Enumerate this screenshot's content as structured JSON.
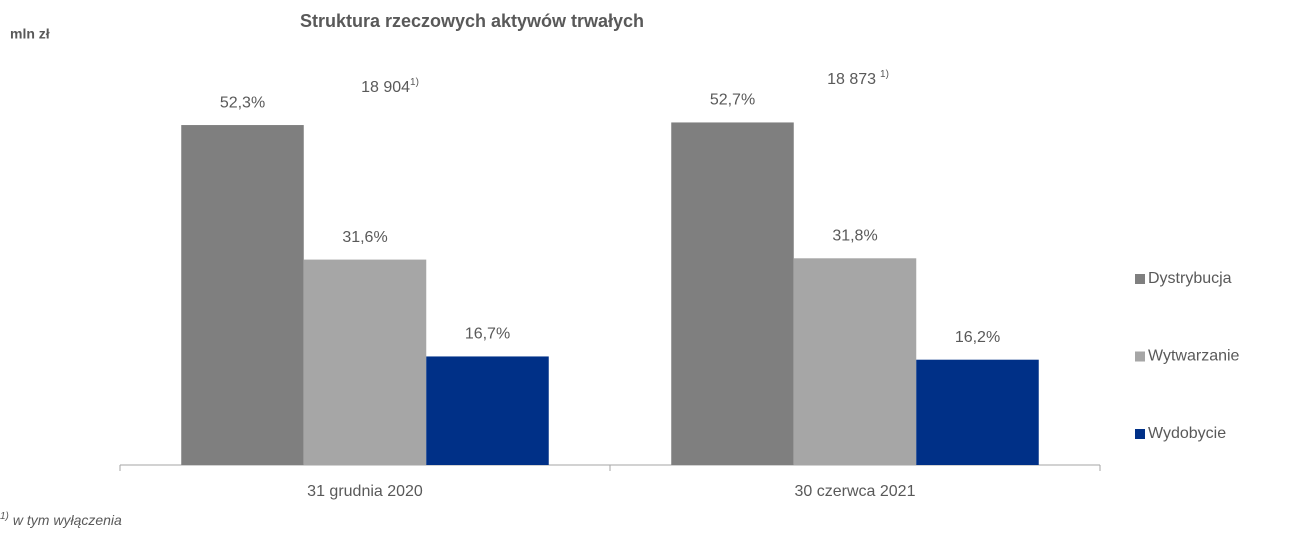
{
  "chart_data": {
    "type": "bar",
    "title": "Struktura rzeczowych aktywów trwałych",
    "unit_label": "mln zł",
    "categories": [
      "31 grudnia 2020",
      "30 czerwca 2021"
    ],
    "series": [
      {
        "name": "Dystrybucja",
        "color": "#7f7f7f",
        "values": [
          52.3,
          52.7
        ],
        "value_labels": [
          "52,3%",
          "52,7%"
        ]
      },
      {
        "name": "Wytwarzanie",
        "color": "#a6a6a6",
        "values": [
          31.6,
          31.8
        ],
        "value_labels": [
          "31,6%",
          "31,8%"
        ]
      },
      {
        "name": "Wydobycie",
        "color": "#003087",
        "values": [
          16.7,
          16.2
        ],
        "value_labels": [
          "16,7%",
          "16,2%"
        ]
      }
    ],
    "annotations": [
      "18 904",
      "18 873"
    ],
    "note_mark": "1)",
    "footnote": "w tym wyłączenia",
    "legend": "right"
  }
}
